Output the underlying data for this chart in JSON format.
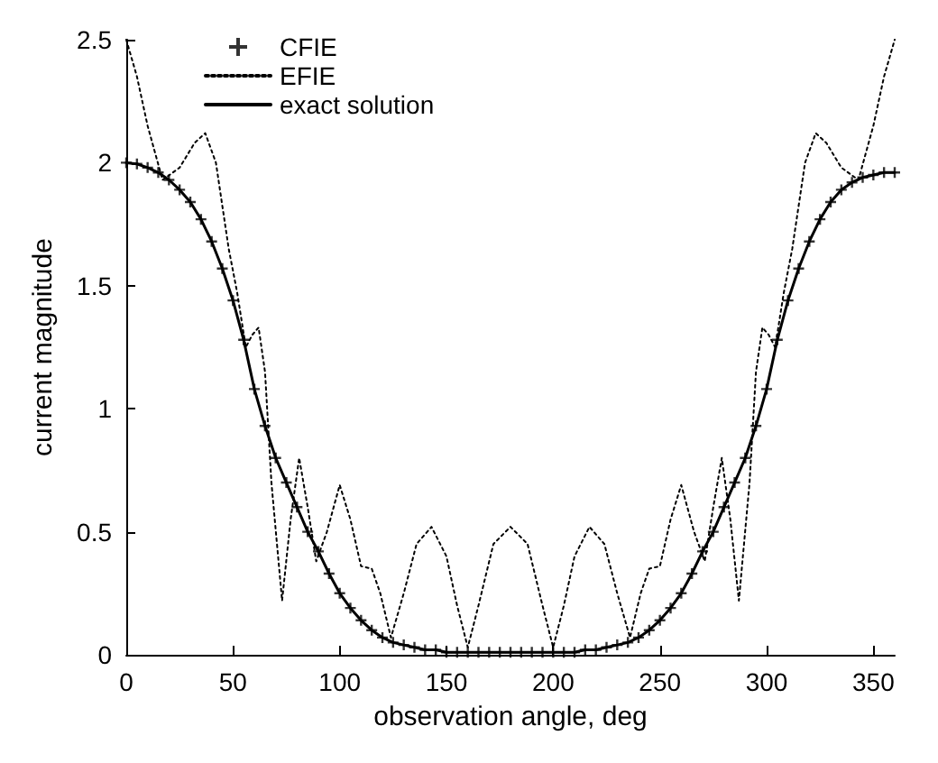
{
  "chart_data": {
    "type": "line",
    "xlabel": "observation angle, deg",
    "ylabel": "current magnitude",
    "x": [
      0,
      5,
      10,
      15,
      20,
      25,
      30,
      35,
      40,
      45,
      50,
      55,
      60,
      65,
      70,
      75,
      80,
      85,
      90,
      95,
      100,
      105,
      110,
      115,
      120,
      125,
      130,
      135,
      140,
      145,
      150,
      155,
      160,
      165,
      170,
      175,
      180,
      185,
      190,
      195,
      200,
      205,
      210,
      215,
      220,
      225,
      230,
      235,
      240,
      245,
      250,
      255,
      260,
      265,
      270,
      275,
      280,
      285,
      290,
      295,
      300,
      305,
      310,
      315,
      320,
      325,
      330,
      335,
      340,
      345,
      350,
      355,
      360
    ],
    "xlim": [
      0,
      360
    ],
    "xticks": [
      0,
      50,
      100,
      150,
      200,
      250,
      300,
      350
    ],
    "ylim": [
      0,
      2.5
    ],
    "yticks": [
      0,
      0.5,
      1,
      1.5,
      2,
      2.5
    ],
    "grid": false,
    "legend": "top left",
    "series": [
      {
        "name": "CFIE",
        "type": "scatter",
        "marker": "cross",
        "color": "#000000",
        "values": [
          2.0,
          1.995,
          1.98,
          1.96,
          1.93,
          1.89,
          1.84,
          1.77,
          1.68,
          1.57,
          1.44,
          1.28,
          1.08,
          0.93,
          0.8,
          0.7,
          0.6,
          0.5,
          0.42,
          0.33,
          0.25,
          0.19,
          0.14,
          0.1,
          0.07,
          0.05,
          0.04,
          0.03,
          0.02,
          0.02,
          0.01,
          0.01,
          0.01,
          0.01,
          0.01,
          0.01,
          0.01,
          0.01,
          0.01,
          0.01,
          0.01,
          0.01,
          0.01,
          0.02,
          0.02,
          0.03,
          0.04,
          0.05,
          0.07,
          0.1,
          0.14,
          0.19,
          0.25,
          0.33,
          0.42,
          0.5,
          0.6,
          0.7,
          0.8,
          0.93,
          1.08,
          1.28,
          1.44,
          1.57,
          1.68,
          1.77,
          1.84,
          1.89,
          1.92,
          1.94,
          1.95,
          1.96,
          1.96
        ]
      },
      {
        "name": "EFIE",
        "line_style": "dotted",
        "color": "#000000",
        "x": [
          0,
          5,
          10,
          17,
          25,
          32,
          37,
          42,
          48,
          52,
          56,
          59,
          62,
          65,
          68,
          73,
          77,
          81,
          85,
          89,
          94,
          100,
          105,
          110,
          115,
          119,
          124,
          130,
          136,
          143,
          150,
          155,
          160,
          165,
          172,
          180,
          188,
          195,
          200,
          205,
          210,
          217,
          224,
          230,
          236,
          241,
          245,
          250,
          255,
          260,
          266,
          271,
          275,
          279,
          283,
          287,
          292,
          295,
          298,
          301,
          304,
          308,
          312,
          318,
          323,
          328,
          335,
          343,
          350,
          355,
          360
        ],
        "values": [
          2.5,
          2.35,
          2.15,
          1.93,
          1.98,
          2.08,
          2.12,
          2.0,
          1.65,
          1.47,
          1.25,
          1.3,
          1.33,
          1.15,
          0.7,
          0.22,
          0.55,
          0.8,
          0.6,
          0.38,
          0.5,
          0.69,
          0.55,
          0.36,
          0.35,
          0.25,
          0.07,
          0.25,
          0.45,
          0.52,
          0.4,
          0.2,
          0.03,
          0.2,
          0.45,
          0.52,
          0.45,
          0.2,
          0.03,
          0.2,
          0.4,
          0.52,
          0.45,
          0.25,
          0.07,
          0.25,
          0.35,
          0.36,
          0.55,
          0.69,
          0.5,
          0.38,
          0.6,
          0.8,
          0.55,
          0.22,
          0.7,
          1.15,
          1.33,
          1.3,
          1.25,
          1.47,
          1.65,
          2.0,
          2.12,
          2.08,
          1.98,
          1.93,
          2.15,
          2.35,
          2.5
        ]
      },
      {
        "name": "exact solution",
        "line_style": "solid",
        "color": "#000000",
        "values": [
          2.0,
          1.995,
          1.98,
          1.96,
          1.93,
          1.89,
          1.84,
          1.77,
          1.68,
          1.57,
          1.44,
          1.28,
          1.08,
          0.93,
          0.8,
          0.7,
          0.6,
          0.5,
          0.42,
          0.33,
          0.25,
          0.19,
          0.14,
          0.1,
          0.07,
          0.05,
          0.04,
          0.03,
          0.02,
          0.02,
          0.01,
          0.01,
          0.01,
          0.01,
          0.01,
          0.01,
          0.01,
          0.01,
          0.01,
          0.01,
          0.01,
          0.01,
          0.01,
          0.02,
          0.02,
          0.03,
          0.04,
          0.05,
          0.07,
          0.1,
          0.14,
          0.19,
          0.25,
          0.33,
          0.42,
          0.5,
          0.6,
          0.7,
          0.8,
          0.93,
          1.08,
          1.28,
          1.44,
          1.57,
          1.68,
          1.77,
          1.84,
          1.89,
          1.92,
          1.94,
          1.95,
          1.96,
          1.96
        ]
      }
    ]
  }
}
